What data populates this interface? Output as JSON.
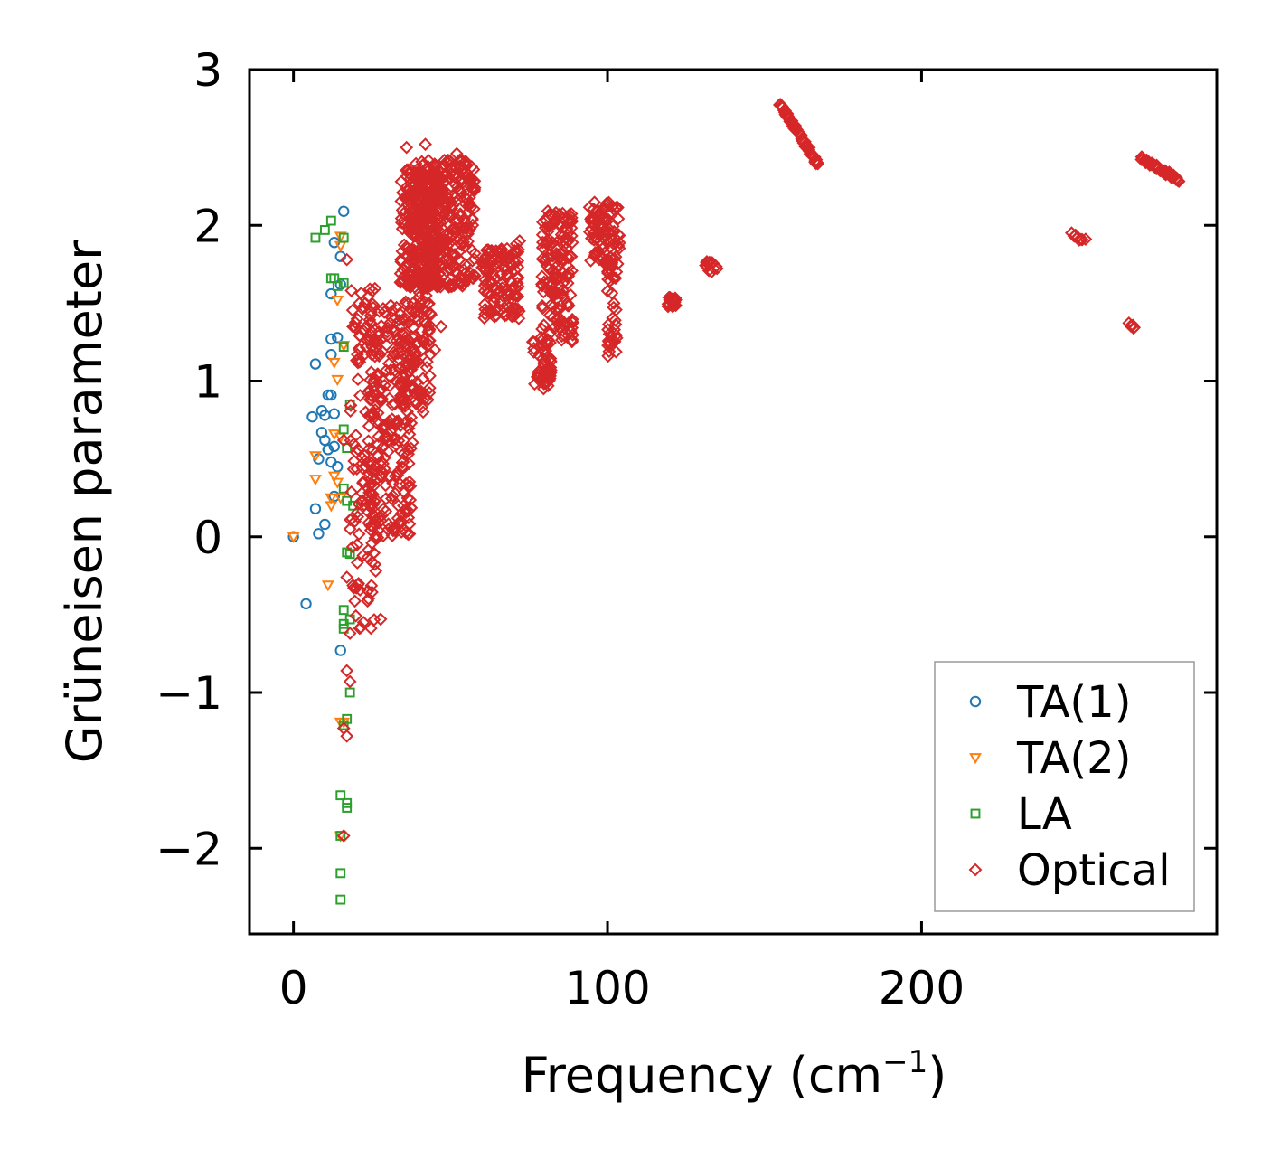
{
  "chart_data": {
    "type": "scatter",
    "xlabel": "Frequency (cm",
    "xlabel_sup": "−1",
    "xlabel_end": ")",
    "ylabel": "Grüneisen parameter",
    "xlim": [
      -14,
      294
    ],
    "ylim": [
      -2.55,
      3.0
    ],
    "xticks": [
      0,
      100,
      200
    ],
    "xtick_labels": [
      "0",
      "100",
      "200"
    ],
    "yticks": [
      -2,
      -1,
      0,
      1,
      2,
      3
    ],
    "ytick_labels": [
      "−2",
      "−1",
      "0",
      "1",
      "2",
      "3"
    ],
    "legend_position": "lower-right",
    "series": [
      {
        "name": "TA(1)",
        "color": "#1f77b4",
        "marker": "circle",
        "x": [
          0,
          4,
          6,
          7,
          7,
          8,
          8,
          9,
          9,
          10,
          10,
          10,
          11,
          11,
          11,
          12,
          12,
          12,
          12,
          12,
          13,
          13,
          13,
          13,
          14,
          14,
          15,
          15,
          15,
          16
        ],
        "y": [
          0.0,
          -0.43,
          0.77,
          1.11,
          0.18,
          0.5,
          0.02,
          0.81,
          0.67,
          0.08,
          0.62,
          0.78,
          0.56,
          0.56,
          0.91,
          1.56,
          1.27,
          1.17,
          0.91,
          0.48,
          1.89,
          0.79,
          0.58,
          0.26,
          0.45,
          1.28,
          1.8,
          1.62,
          -0.73,
          2.09
        ]
      },
      {
        "name": "TA(2)",
        "color": "#ff7f0e",
        "marker": "triangle-down",
        "x": [
          0,
          7,
          7,
          11,
          12,
          12,
          13,
          13,
          13,
          14,
          14,
          14,
          15,
          15,
          15,
          15,
          15,
          15,
          16,
          16
        ],
        "y": [
          0.0,
          0.52,
          0.37,
          -0.31,
          0.25,
          0.2,
          0.66,
          0.39,
          1.12,
          1.01,
          0.35,
          1.52,
          0.64,
          0.25,
          -1.19,
          -1.92,
          1.93,
          1.87,
          1.23,
          -1.19
        ]
      },
      {
        "name": "LA",
        "color": "#2ca02c",
        "marker": "square",
        "x": [
          7,
          10,
          12,
          12,
          13,
          14,
          15,
          15,
          15,
          15,
          16,
          16,
          16,
          16,
          16,
          16,
          16,
          16,
          16,
          17,
          17,
          17,
          17,
          17,
          17,
          18,
          18,
          18,
          18,
          19
        ],
        "y": [
          1.92,
          1.97,
          2.03,
          1.66,
          1.66,
          1.61,
          -1.66,
          -2.33,
          -2.16,
          -1.92,
          1.92,
          1.63,
          1.22,
          0.69,
          0.31,
          -0.47,
          -0.56,
          -0.59,
          -1.21,
          -1.74,
          -1.71,
          -1.17,
          -0.1,
          0.57,
          0.23,
          0.85,
          -0.11,
          -0.53,
          -1.0,
          0.2
        ]
      },
      {
        "name": "Optical",
        "color": "#d62728",
        "marker": "diamond",
        "x": [],
        "y": [],
        "clusters": [
          {
            "x": [
              16,
              17,
              16,
              18,
              17,
              18,
              17,
              18,
              16,
              17
            ],
            "y": [
              -1.92,
              -1.28,
              -1.23,
              -0.93,
              -0.86,
              -0.62,
              -0.26,
              0.05,
              0.62,
              1.78
            ]
          },
          {
            "xr": [
              18,
              28
            ],
            "yr": [
              -0.6,
              1.6
            ],
            "n": 150
          },
          {
            "xr": [
              24,
              38
            ],
            "yr": [
              0.0,
              1.5
            ],
            "n": 230
          },
          {
            "xr": [
              34,
              44
            ],
            "yr": [
              0.8,
              2.4
            ],
            "n": 200
          },
          {
            "x": [
              36,
              42,
              45,
              47
            ],
            "y": [
              2.5,
              2.52,
              1.2,
              1.35
            ]
          },
          {
            "xr": [
              36,
              47
            ],
            "yr": [
              1.6,
              2.4
            ],
            "n": 200
          },
          {
            "xr": [
              40,
              58
            ],
            "yr": [
              1.6,
              2.42
            ],
            "n": 300
          },
          {
            "x": [
              52,
              51,
              53
            ],
            "y": [
              2.46,
              2.35,
              2.42
            ]
          },
          {
            "xr": [
              60,
              72
            ],
            "yr": [
              1.4,
              1.85
            ],
            "n": 130
          },
          {
            "x": [
              72,
              71
            ],
            "y": [
              1.9,
              1.88
            ]
          },
          {
            "xr": [
              76,
              82
            ],
            "yr": [
              0.95,
              1.3
            ],
            "n": 50
          },
          {
            "xr": [
              79,
              89
            ],
            "yr": [
              1.25,
              2.1
            ],
            "n": 160
          },
          {
            "xr": [
              94,
              104
            ],
            "yr": [
              1.75,
              2.15
            ],
            "n": 90
          },
          {
            "xr": [
              100,
              103
            ],
            "yr": [
              1.15,
              1.8
            ],
            "n": 40
          },
          {
            "xr": [
              119,
              122
            ],
            "yr": [
              1.47,
              1.54
            ],
            "n": 14
          },
          {
            "xr": [
              131,
              135
            ],
            "yr": [
              1.7,
              1.77
            ],
            "n": 14
          },
          {
            "line": [
              155,
              2.78,
              167,
              2.39
            ],
            "n": 60
          },
          {
            "line": [
              248,
              1.94,
              252,
              1.9
            ],
            "n": 8
          },
          {
            "line": [
              266,
              1.36,
              268,
              1.34
            ],
            "n": 5
          },
          {
            "line": [
              270,
              2.43,
              282,
              2.29
            ],
            "n": 40
          }
        ]
      }
    ]
  }
}
